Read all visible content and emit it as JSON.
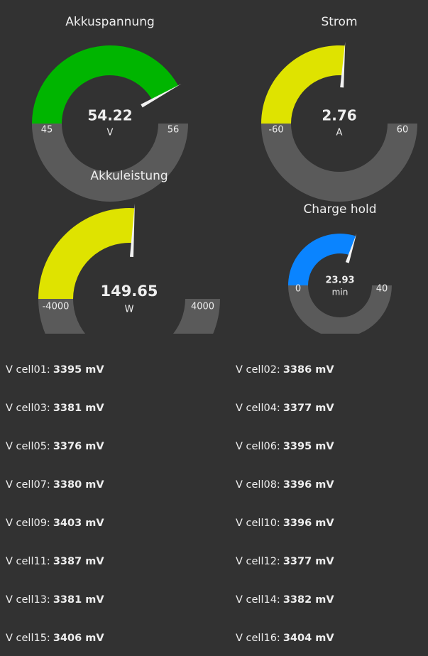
{
  "gauges": [
    {
      "title": "Akkuspannung",
      "value": 54.22,
      "unit": "V",
      "min": 45,
      "max": 56,
      "color": "#00b500"
    },
    {
      "title": "Strom",
      "value": 2.76,
      "unit": "A",
      "min": -60,
      "max": 60,
      "color": "#dfe300"
    },
    {
      "title": "Akkuleistung",
      "value": 149.65,
      "unit": "W",
      "min": -4000,
      "max": 4000,
      "color": "#dfe300"
    },
    {
      "title": "Charge hold",
      "value": 23.93,
      "unit": "min",
      "min": 0,
      "max": 40,
      "color": "#0a84ff"
    }
  ],
  "cells": [
    {
      "label": "V cell01:",
      "value": "3395 mV"
    },
    {
      "label": "V cell02:",
      "value": "3386 mV"
    },
    {
      "label": "V cell03:",
      "value": "3381 mV"
    },
    {
      "label": "V cell04:",
      "value": "3377 mV"
    },
    {
      "label": "V cell05:",
      "value": "3376 mV"
    },
    {
      "label": "V cell06:",
      "value": "3395 mV"
    },
    {
      "label": "V cell07:",
      "value": "3380 mV"
    },
    {
      "label": "V cell08:",
      "value": "3396 mV"
    },
    {
      "label": "V cell09:",
      "value": "3403 mV"
    },
    {
      "label": "V cell10:",
      "value": "3396 mV"
    },
    {
      "label": "V cell11:",
      "value": "3387 mV"
    },
    {
      "label": "V cell12:",
      "value": "3377 mV"
    },
    {
      "label": "V cell13:",
      "value": "3381 mV"
    },
    {
      "label": "V cell14:",
      "value": "3382 mV"
    },
    {
      "label": "V cell15:",
      "value": "3406 mV"
    },
    {
      "label": "V cell16:",
      "value": "3404 mV"
    }
  ]
}
